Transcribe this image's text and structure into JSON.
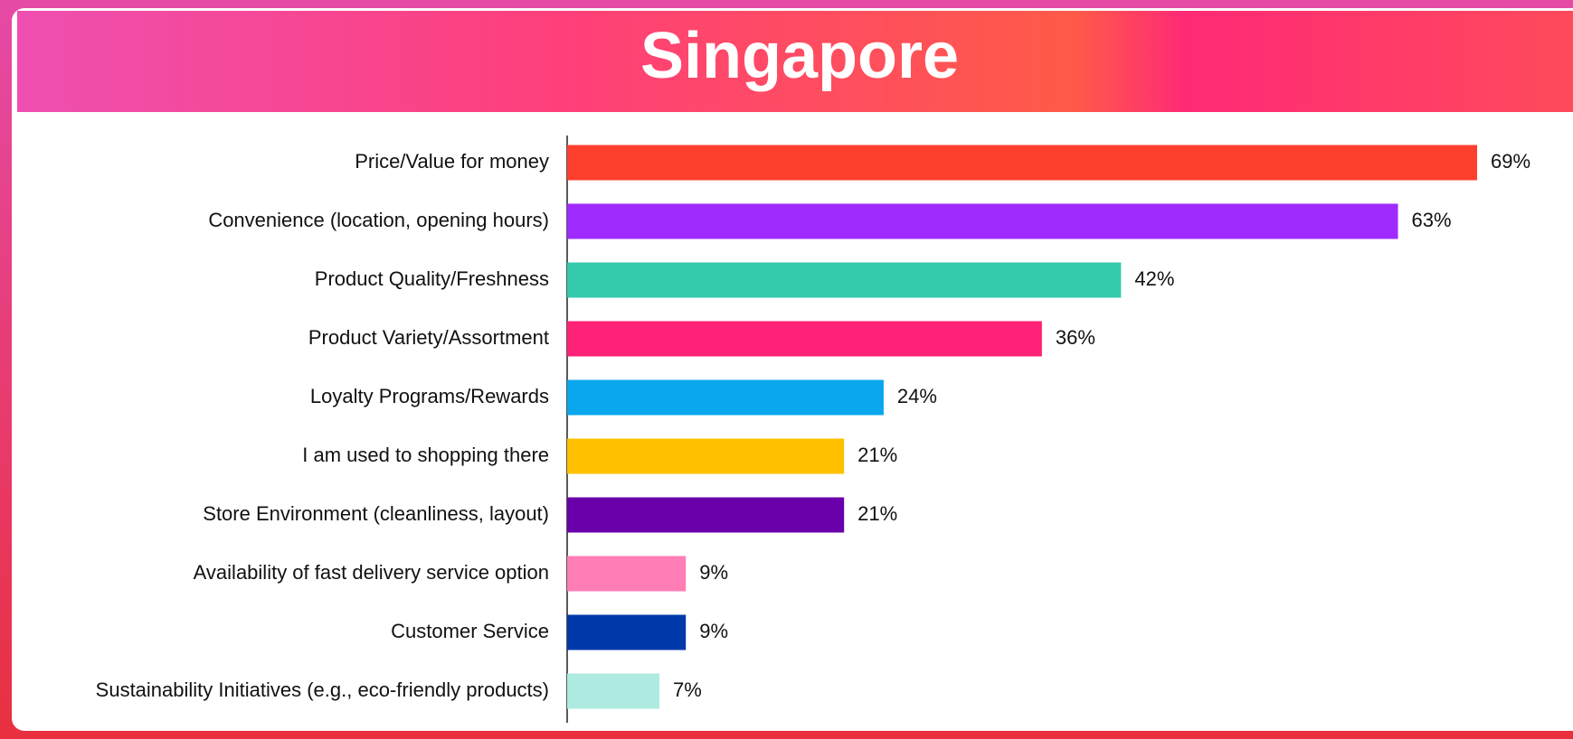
{
  "chart_data": {
    "type": "bar",
    "orientation": "horizontal",
    "title": "Singapore",
    "categories": [
      "Price/Value for money",
      "Convenience (location, opening hours)",
      "Product Quality/Freshness",
      "Product Variety/Assortment",
      "Loyalty Programs/Rewards",
      "I am used to shopping there",
      "Store Environment (cleanliness, layout)",
      "Availability of fast delivery service option",
      "Customer Service",
      "Sustainability Initiatives (e.g., eco-friendly products)"
    ],
    "values": [
      69,
      63,
      42,
      36,
      24,
      21,
      21,
      9,
      9,
      7
    ],
    "value_labels": [
      "69%",
      "63%",
      "42%",
      "36%",
      "24%",
      "21%",
      "21%",
      "9%",
      "9%",
      "7%"
    ],
    "colors": [
      "#ff3f2e",
      "#a02bff",
      "#33cbab",
      "#ff2277",
      "#0aa6ee",
      "#ffc000",
      "#6a00aa",
      "#ff7eb6",
      "#0039aa",
      "#aeeadf"
    ]
  }
}
